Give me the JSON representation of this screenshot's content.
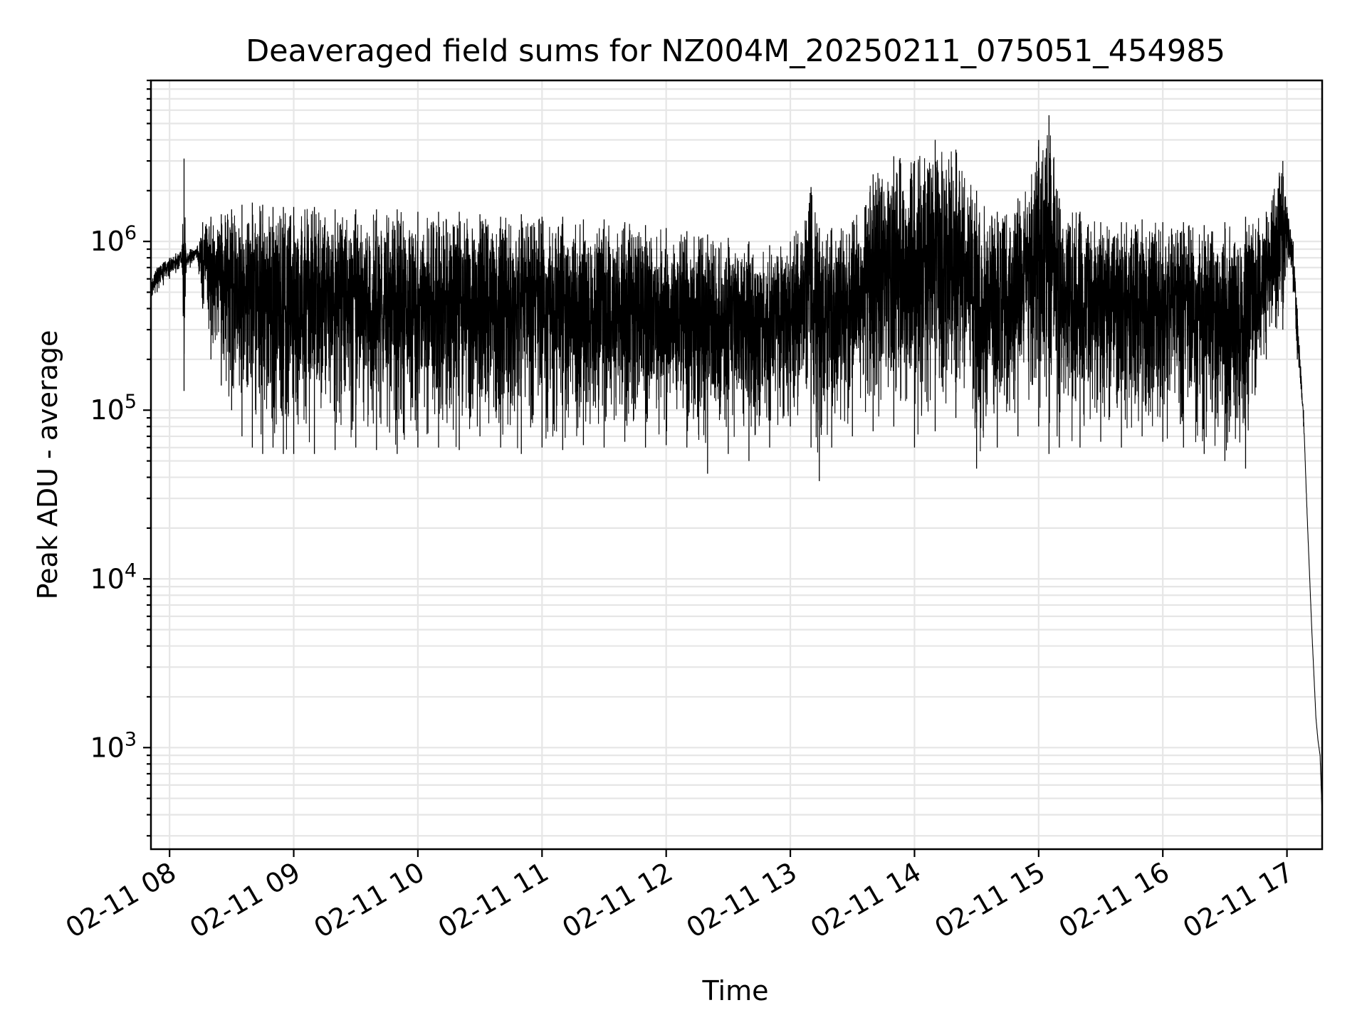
{
  "chart_data": {
    "type": "line",
    "title": "Deaveraged field sums for NZ004M_20250211_075051_454985",
    "xlabel": "Time",
    "ylabel": "Peak ADU - average",
    "yscale": "log",
    "xlim": [
      "2025-02-11 07:51",
      "2025-02-11 17:17"
    ],
    "ylim": [
      250,
      9000000
    ],
    "grid": true,
    "line_color": "#000000",
    "x_ticks": [
      "02-11 08",
      "02-11 09",
      "02-11 10",
      "02-11 11",
      "02-11 12",
      "02-11 13",
      "02-11 14",
      "02-11 15",
      "02-11 16",
      "02-11 17"
    ],
    "y_ticks": [
      {
        "value": 1000,
        "base": "10",
        "exp": "3"
      },
      {
        "value": 10000,
        "base": "10",
        "exp": "4"
      },
      {
        "value": 100000,
        "base": "10",
        "exp": "5"
      },
      {
        "value": 1000000,
        "base": "10",
        "exp": "6"
      }
    ],
    "series": [
      {
        "x": [
          "07:51",
          "07:54",
          "07:57",
          "08:00",
          "08:03",
          "08:06",
          "08:07",
          "08:08",
          "08:10",
          "08:13",
          "08:16",
          "08:20",
          "08:25",
          "08:30",
          "08:35",
          "08:40",
          "08:45",
          "08:50",
          "08:55",
          "09:00",
          "09:10",
          "09:20",
          "09:30",
          "09:40",
          "09:50",
          "10:00",
          "10:10",
          "10:20",
          "10:30",
          "10:40",
          "10:50",
          "11:00",
          "11:10",
          "11:20",
          "11:30",
          "11:40",
          "11:50",
          "12:00",
          "12:10",
          "12:20",
          "12:30",
          "12:40",
          "12:50",
          "13:00",
          "13:10",
          "13:14",
          "13:20",
          "13:30",
          "13:40",
          "13:50",
          "14:00",
          "14:10",
          "14:20",
          "14:30",
          "14:40",
          "14:50",
          "15:00",
          "15:05",
          "15:10",
          "15:20",
          "15:30",
          "15:40",
          "15:50",
          "16:00",
          "16:10",
          "16:20",
          "16:30",
          "16:40",
          "16:50",
          "16:58",
          "17:00",
          "17:03",
          "17:05",
          "17:08",
          "17:10",
          "17:12",
          "17:14",
          "17:15",
          "17:16",
          "17:17"
        ],
        "y_low": [
          430000,
          500000,
          550000,
          600000,
          650000,
          700000,
          130000,
          650000,
          700000,
          800000,
          400000,
          200000,
          140000,
          100000,
          70000,
          60000,
          55000,
          60000,
          55000,
          55000,
          55000,
          58000,
          60000,
          58000,
          55000,
          60000,
          60000,
          58000,
          70000,
          60000,
          55000,
          60000,
          58000,
          62000,
          60000,
          65000,
          60000,
          62000,
          60000,
          42000,
          55000,
          50000,
          60000,
          80000,
          60000,
          38000,
          60000,
          70000,
          75000,
          80000,
          60000,
          75000,
          90000,
          45000,
          60000,
          70000,
          80000,
          55000,
          60000,
          60000,
          65000,
          60000,
          70000,
          65000,
          60000,
          55000,
          50000,
          45000,
          200000,
          300000,
          700000,
          500000,
          200000,
          80000,
          20000,
          5000,
          1500,
          1100,
          900,
          400
        ],
        "y_high": [
          600000,
          700000,
          750000,
          800000,
          850000,
          900000,
          3100000,
          850000,
          900000,
          900000,
          1300000,
          1400000,
          1450000,
          1550000,
          1650000,
          1700000,
          1650000,
          1600000,
          1600000,
          1600000,
          1600000,
          1550000,
          1550000,
          1550000,
          1550000,
          1500000,
          1500000,
          1500000,
          1450000,
          1400000,
          1450000,
          1400000,
          1400000,
          1350000,
          1350000,
          1300000,
          1250000,
          1200000,
          1150000,
          1100000,
          1050000,
          1000000,
          950000,
          1000000,
          2100000,
          1200000,
          1200000,
          1300000,
          2500000,
          3200000,
          3000000,
          4000000,
          3500000,
          2000000,
          1500000,
          1800000,
          4000000,
          5600000,
          1800000,
          1500000,
          1300000,
          1300000,
          1350000,
          1300000,
          1300000,
          1250000,
          1300000,
          1400000,
          1500000,
          3000000,
          1600000,
          1000000,
          400000,
          100000,
          20000,
          5000,
          1500,
          1100,
          900,
          400
        ]
      }
    ]
  }
}
